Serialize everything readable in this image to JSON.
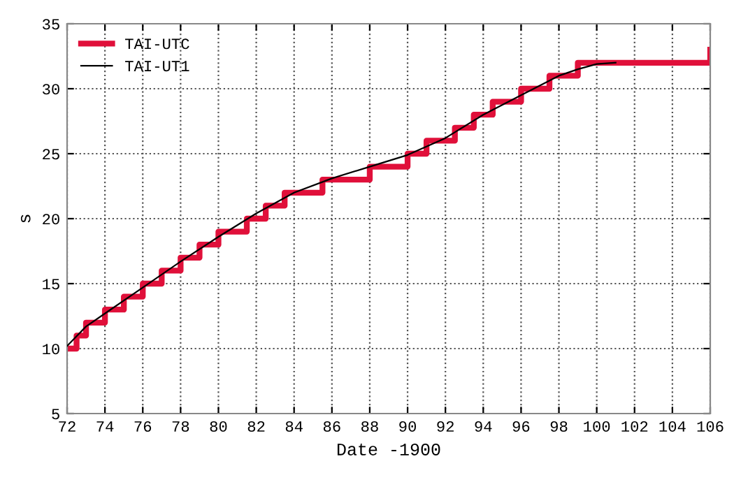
{
  "chart_data": {
    "type": "line",
    "xlabel": "Date -1900",
    "ylabel": "s",
    "xlim": [
      72,
      106
    ],
    "xticks": [
      72,
      74,
      76,
      78,
      80,
      82,
      84,
      86,
      88,
      90,
      92,
      94,
      96,
      98,
      100,
      102,
      104,
      106
    ],
    "ylim": [
      5,
      35
    ],
    "yticks": [
      5,
      10,
      15,
      20,
      25,
      30,
      35
    ],
    "grid": true,
    "legend": "top left",
    "line_style": "solid",
    "marker": "none",
    "series": [
      {
        "name": "TAI-UTC",
        "type": "step",
        "color": "#e0103a",
        "x": [
          72,
          72.5,
          73,
          74,
          75,
          76,
          77,
          78,
          79,
          80,
          81.5,
          82.5,
          83.5,
          85.5,
          88,
          90,
          91,
          92.5,
          93.5,
          94.5,
          96,
          97.5,
          99,
          106
        ],
        "values": [
          10,
          11,
          12,
          13,
          14,
          15,
          16,
          17,
          18,
          19,
          20,
          21,
          22,
          23,
          24,
          25,
          26,
          27,
          28,
          29,
          30,
          31,
          32,
          33
        ]
      },
      {
        "name": "TAI-UT1",
        "color": "#000000",
        "x": [
          72,
          73,
          74,
          76,
          78,
          80,
          82,
          84,
          86,
          88,
          90,
          92,
          94,
          96,
          98,
          99,
          100,
          101
        ],
        "values": [
          10.2,
          11.7,
          12.7,
          14.7,
          16.7,
          18.6,
          20.4,
          22.0,
          23.1,
          24.0,
          24.9,
          26.2,
          28.0,
          29.5,
          31.0,
          31.5,
          31.9,
          32.0
        ]
      }
    ]
  }
}
